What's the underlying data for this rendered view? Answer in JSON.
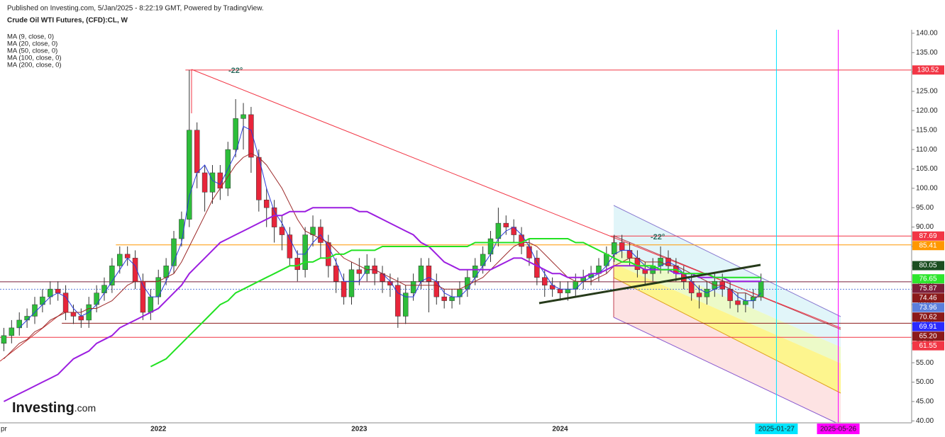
{
  "chart_data": {
    "type": "candlestick",
    "subtitle": "Published on Investing.com, 5/Jan/2025 - 8:22:19 GMT, Powered by TradingView.",
    "title": "Crude Oil WTI Futures, (CFD):CL, W",
    "logo": "Investing",
    "logo_suffix": ".com",
    "annotations": [
      "-22°",
      "-22°"
    ],
    "up_color": "#2dbd3a",
    "down_color": "#e8253a",
    "categories": [
      "pr",
      null,
      null,
      null,
      null,
      null,
      null,
      null,
      null,
      null,
      null,
      null,
      null,
      null,
      null,
      null,
      null,
      null,
      null,
      null,
      "2022",
      null,
      null,
      null,
      null,
      null,
      null,
      null,
      null,
      null,
      null,
      null,
      null,
      null,
      null,
      null,
      null,
      null,
      null,
      null,
      null,
      null,
      null,
      null,
      null,
      null,
      "2023",
      null,
      null,
      null,
      null,
      null,
      null,
      null,
      null,
      null,
      null,
      null,
      null,
      null,
      null,
      null,
      null,
      null,
      null,
      null,
      null,
      null,
      null,
      null,
      null,
      null,
      "2024",
      null,
      null,
      null,
      null,
      null,
      null,
      null,
      null,
      null,
      null,
      null,
      null,
      null,
      null,
      null,
      null,
      null,
      null,
      null,
      null,
      null,
      null,
      null,
      null,
      null,
      null,
      null,
      "2025-01-27",
      null,
      null,
      null,
      null,
      null,
      null,
      null,
      "2025-05-26",
      null,
      null,
      null,
      null,
      null,
      null,
      null,
      null,
      null
    ],
    "highlight": {
      "2025-01-27": "#00e5ff",
      "2025-05-26": "#ff00ff"
    },
    "open": [
      60,
      62,
      64,
      66,
      67,
      70,
      72,
      74,
      73,
      68,
      67,
      66,
      70,
      73,
      75,
      80,
      83,
      82,
      76,
      68,
      72,
      77,
      80,
      87,
      92,
      115,
      104,
      99,
      104,
      100,
      110,
      118,
      119,
      108,
      97,
      95,
      90,
      88,
      82,
      79,
      88,
      90,
      86,
      80,
      76,
      72,
      79,
      78,
      80,
      78,
      76,
      75,
      67,
      73,
      76,
      80,
      76,
      72,
      71,
      72,
      74,
      77,
      80,
      83,
      87,
      91,
      90,
      88,
      85,
      82,
      77,
      75,
      74,
      73,
      74,
      76,
      77,
      78,
      80,
      83,
      86,
      84,
      82,
      79,
      78,
      80,
      82,
      80,
      78,
      76,
      73,
      72,
      74,
      76,
      74,
      71,
      70,
      71,
      72,
      null,
      null,
      null,
      null,
      null,
      null,
      null,
      null,
      null,
      null,
      null,
      null,
      null,
      null,
      null,
      null,
      null,
      null,
      null
    ],
    "high": [
      64,
      66,
      68,
      69,
      72,
      74,
      76,
      76,
      75,
      70,
      69,
      72,
      75,
      77,
      82,
      85,
      85,
      84,
      78,
      74,
      79,
      82,
      89,
      94,
      130.52,
      117,
      106,
      106,
      106,
      112,
      123,
      122,
      121,
      110,
      100,
      97,
      93,
      90,
      84,
      90,
      93,
      92,
      88,
      82,
      78,
      81,
      82,
      83,
      82,
      80,
      78,
      77,
      75,
      78,
      82,
      82,
      78,
      74,
      74,
      76,
      79,
      82,
      85,
      89,
      95,
      93,
      92,
      90,
      87,
      84,
      79,
      77,
      76,
      76,
      78,
      79,
      80,
      82,
      85,
      88,
      88,
      86,
      84,
      81,
      82,
      85,
      84,
      82,
      80,
      78,
      75,
      76,
      78,
      78,
      76,
      73,
      73,
      74,
      78,
      null,
      null,
      null,
      null,
      null,
      null,
      null,
      null,
      null,
      null,
      null,
      null,
      null,
      null,
      null,
      null,
      null,
      null,
      null
    ],
    "low": [
      58,
      60,
      62,
      64,
      65,
      68,
      70,
      71,
      66,
      65,
      64,
      64,
      68,
      71,
      73,
      78,
      80,
      74,
      66,
      66,
      70,
      75,
      78,
      85,
      90,
      100,
      94,
      96,
      97,
      98,
      108,
      110,
      104,
      94,
      90,
      86,
      84,
      80,
      76,
      77,
      85,
      82,
      77,
      73,
      70,
      70,
      75,
      76,
      75,
      73,
      72,
      64,
      65,
      71,
      74,
      68,
      70,
      69,
      69,
      70,
      72,
      75,
      78,
      81,
      85,
      88,
      86,
      83,
      80,
      75,
      72,
      72,
      71,
      71,
      72,
      74,
      75,
      76,
      78,
      81,
      82,
      80,
      77,
      75,
      76,
      78,
      78,
      76,
      74,
      71,
      69,
      70,
      72,
      72,
      69,
      68,
      68,
      69,
      71,
      null,
      null,
      null,
      null,
      null,
      null,
      null,
      null,
      null,
      null,
      null,
      null,
      null,
      null,
      null,
      null,
      null,
      null,
      null
    ],
    "close": [
      62,
      64,
      66,
      67,
      70,
      72,
      74,
      73,
      68,
      67,
      66,
      70,
      73,
      75,
      80,
      83,
      82,
      76,
      68,
      72,
      77,
      80,
      87,
      92,
      115,
      104,
      99,
      104,
      100,
      110,
      118,
      119,
      108,
      97,
      95,
      90,
      88,
      82,
      79,
      88,
      90,
      86,
      80,
      76,
      72,
      79,
      78,
      80,
      78,
      76,
      75,
      67,
      73,
      76,
      80,
      76,
      72,
      71,
      72,
      74,
      77,
      80,
      83,
      87,
      91,
      90,
      88,
      85,
      82,
      77,
      75,
      74,
      73,
      74,
      76,
      77,
      78,
      80,
      83,
      86,
      84,
      82,
      79,
      78,
      80,
      82,
      80,
      78,
      76,
      73,
      72,
      74,
      76,
      74,
      71,
      70,
      71,
      72,
      76,
      null,
      null,
      null,
      null,
      null,
      null,
      null,
      null,
      null,
      null,
      null,
      null,
      null,
      null,
      null,
      null,
      null,
      null,
      null
    ],
    "series": [
      {
        "name": "MA (9, close, 0)",
        "color": "#2a3adb",
        "values": [
          null,
          null,
          64,
          66,
          68,
          70,
          72,
          73,
          72,
          69,
          67,
          68,
          70,
          73,
          76,
          79,
          82,
          80,
          75,
          72,
          72,
          76,
          81,
          86,
          98,
          104,
          106,
          102,
          101,
          105,
          109,
          116,
          115,
          108,
          100,
          94,
          91,
          87,
          83,
          83,
          86,
          88,
          85,
          81,
          76,
          76,
          76,
          79,
          79,
          78,
          76,
          73,
          72,
          72,
          76,
          77,
          76,
          73,
          72,
          72,
          74,
          77,
          80,
          83,
          87,
          89,
          90,
          88,
          85,
          81,
          78,
          75,
          74,
          74,
          74,
          76,
          77,
          78,
          80,
          83,
          84,
          84,
          82,
          80,
          79,
          80,
          81,
          80,
          78,
          76,
          74,
          73,
          74,
          75,
          74,
          72,
          71,
          71,
          73,
          null,
          null,
          null,
          null,
          null,
          null,
          null,
          null,
          null,
          null,
          null,
          null,
          null,
          null,
          null,
          null,
          null,
          null,
          null
        ]
      },
      {
        "name": "MA (20, close, 0)",
        "color": "#9c2a2a",
        "values": [
          56,
          58,
          60,
          61,
          63,
          64,
          66,
          67,
          68,
          68,
          68,
          69,
          69,
          70,
          71,
          73,
          75,
          76,
          76,
          76,
          76,
          77,
          78,
          81,
          85,
          89,
          93,
          97,
          100,
          103,
          106,
          108,
          109,
          108,
          106,
          103,
          100,
          96,
          92,
          89,
          88,
          87,
          86,
          84,
          82,
          81,
          80,
          79,
          79,
          78,
          77,
          76,
          75,
          75,
          75,
          75,
          75,
          74,
          74,
          74,
          75,
          76,
          77,
          79,
          81,
          83,
          85,
          86,
          86,
          85,
          83,
          81,
          79,
          77,
          76,
          76,
          76,
          77,
          78,
          80,
          81,
          82,
          82,
          81,
          81,
          81,
          80,
          80,
          79,
          78,
          77,
          76,
          75,
          75,
          74,
          73,
          73,
          72,
          72,
          null,
          null,
          null,
          null,
          null,
          null,
          null,
          null,
          null,
          null,
          null,
          null,
          null,
          null,
          null,
          null,
          null,
          null,
          null
        ]
      },
      {
        "name": "MA (50, close, 0)",
        "color": "#9c1ee0",
        "values": [
          45,
          46,
          47,
          48,
          49,
          50,
          51,
          52,
          54,
          56,
          57,
          58,
          60,
          61,
          62,
          64,
          65,
          66,
          67,
          68,
          69,
          71,
          73,
          75,
          78,
          80,
          82,
          84,
          86,
          87,
          88,
          89,
          90,
          91,
          92,
          93,
          93,
          94,
          94,
          94,
          95,
          95,
          95,
          95,
          95,
          95,
          94,
          94,
          93,
          92,
          91,
          90,
          89,
          88,
          86,
          85,
          83,
          81,
          80,
          79,
          79,
          79,
          79,
          79,
          80,
          81,
          82,
          82,
          81,
          80,
          79,
          78,
          78,
          77,
          77,
          77,
          78,
          78,
          79,
          80,
          80,
          80,
          80,
          79,
          79,
          79,
          79,
          78,
          78,
          78,
          77,
          77,
          77,
          77,
          76,
          76,
          76,
          76,
          76,
          null,
          null,
          null,
          null,
          null,
          null,
          null,
          null,
          null,
          null,
          null,
          null,
          null,
          null,
          null,
          null,
          null,
          null,
          null
        ]
      },
      {
        "name": "MA (100, close, 0)",
        "color": "#22e222",
        "values": [
          null,
          null,
          null,
          null,
          null,
          null,
          null,
          null,
          null,
          null,
          null,
          null,
          null,
          null,
          null,
          null,
          null,
          null,
          null,
          54,
          55,
          56,
          58,
          60,
          62,
          64,
          66,
          68,
          70,
          71,
          73,
          74,
          75,
          76,
          77,
          78,
          79,
          80,
          80,
          81,
          81,
          82,
          82,
          83,
          83,
          84,
          84,
          84,
          84,
          85,
          85,
          85,
          85,
          85,
          85,
          85,
          85,
          85,
          85,
          85,
          85,
          86,
          86,
          86,
          86,
          86,
          86,
          86,
          87,
          87,
          87,
          87,
          87,
          87,
          86,
          86,
          85,
          84,
          83,
          82,
          81,
          81,
          80,
          80,
          80,
          79,
          79,
          79,
          78,
          78,
          78,
          78,
          77,
          77,
          77,
          77,
          77,
          77,
          77,
          null,
          null,
          null,
          null,
          null,
          null,
          null,
          null,
          null,
          null,
          null,
          null,
          null,
          null,
          null,
          null,
          null,
          null,
          null
        ]
      },
      {
        "name": "MA (200, close, 0)",
        "color": "#000000"
      }
    ],
    "price_labels": [
      {
        "value": 130.52,
        "label": "130.52",
        "color": "#f23645",
        "line": "solid"
      },
      {
        "value": 87.69,
        "label": "87.69",
        "color": "#f23645",
        "line": "solid"
      },
      {
        "value": 85.41,
        "label": "85.41",
        "color": "#ff9800",
        "line": "solid"
      },
      {
        "value": 80.05,
        "label": "80.05",
        "color": "#1b4d20"
      },
      {
        "value": 76.65,
        "label": "76.65",
        "color": "#2ee62e"
      },
      {
        "value": 75.87,
        "label": "75.87",
        "color": "#7b1f3a",
        "line": "solid"
      },
      {
        "value": 74.46,
        "label": "74.46",
        "color": "#8b1a1a"
      },
      {
        "value": 73.96,
        "label": "73.96",
        "color": "#5b7fdc",
        "line": "dotted"
      },
      {
        "value": 70.62,
        "label": "70.62",
        "color": "#8b1a1a"
      },
      {
        "value": 69.91,
        "label": "69.91",
        "color": "#2a2aff"
      },
      {
        "value": 65.2,
        "label": "65.20",
        "color": "#8b1a1a",
        "line": "solid"
      },
      {
        "value": 61.55,
        "label": "61.55",
        "color": "#f23645",
        "line": "solid"
      }
    ],
    "ylim": [
      39.5,
      140.9
    ],
    "yticks": [
      {
        "value": 40,
        "label": "40.00"
      },
      {
        "value": 45,
        "label": "45.00"
      },
      {
        "value": 50,
        "label": "50.00"
      },
      {
        "value": 55,
        "label": "55.00"
      },
      {
        "value": 60,
        "label": "60.00"
      },
      {
        "value": 65,
        "label": "65.00"
      },
      {
        "value": 70,
        "label": "70.00"
      },
      {
        "value": 75,
        "label": "75.00"
      },
      {
        "value": 80,
        "label": "80.00"
      },
      {
        "value": 85,
        "label": "85.00"
      },
      {
        "value": 90,
        "label": "90.00"
      },
      {
        "value": 95,
        "label": "95.00"
      },
      {
        "value": 100,
        "label": "100.00"
      },
      {
        "value": 105,
        "label": "105.00"
      },
      {
        "value": 110,
        "label": "110.00"
      },
      {
        "value": 115,
        "label": "115.00"
      },
      {
        "value": 120,
        "label": "120.00"
      },
      {
        "value": 125,
        "label": "125.00"
      },
      {
        "value": 130,
        "label": "130.00"
      },
      {
        "value": 135,
        "label": "135.00"
      },
      {
        "value": 140,
        "label": "140.00"
      }
    ],
    "grid": false
  }
}
